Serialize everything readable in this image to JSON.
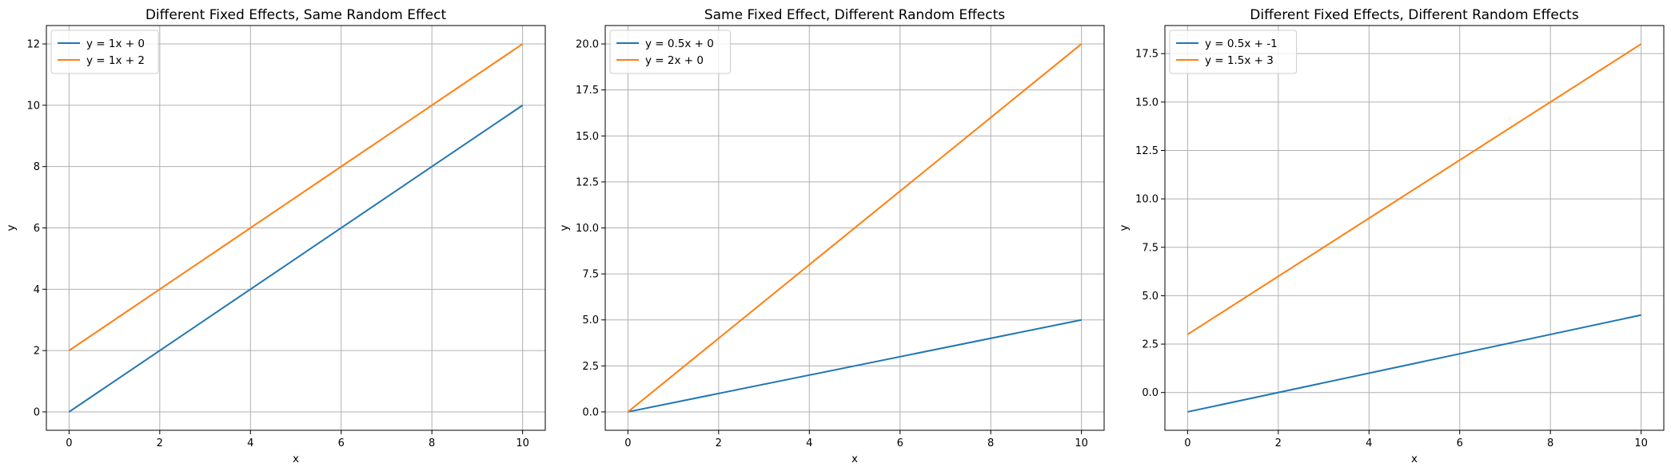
{
  "chart_data": [
    {
      "type": "line",
      "title": "Different Fixed Effects, Same Random Effect",
      "xlabel": "x",
      "ylabel": "y",
      "xlim": [
        -0.5,
        10.5
      ],
      "ylim": [
        -0.6,
        12.6
      ],
      "xticks": [
        0,
        2,
        4,
        6,
        8,
        10
      ],
      "yticks": [
        0,
        2,
        4,
        6,
        8,
        10,
        12
      ],
      "ytick_labels": [
        "0",
        "2",
        "4",
        "6",
        "8",
        "10",
        "12"
      ],
      "grid": true,
      "legend_position": "upper-left",
      "series": [
        {
          "name": "y = 1x + 0",
          "color": "#1f77b4",
          "x": [
            0,
            10
          ],
          "y": [
            0,
            10
          ]
        },
        {
          "name": "y = 1x + 2",
          "color": "#ff7f0e",
          "x": [
            0,
            10
          ],
          "y": [
            2,
            12
          ]
        }
      ]
    },
    {
      "type": "line",
      "title": "Same Fixed Effect, Different Random Effects",
      "xlabel": "x",
      "ylabel": "y",
      "xlim": [
        -0.5,
        10.5
      ],
      "ylim": [
        -1.0,
        21.0
      ],
      "xticks": [
        0,
        2,
        4,
        6,
        8,
        10
      ],
      "yticks": [
        0,
        2.5,
        5,
        7.5,
        10,
        12.5,
        15,
        17.5,
        20
      ],
      "ytick_labels": [
        "0.0",
        "2.5",
        "5.0",
        "7.5",
        "10.0",
        "12.5",
        "15.0",
        "17.5",
        "20.0"
      ],
      "grid": true,
      "legend_position": "upper-left",
      "series": [
        {
          "name": "y = 0.5x + 0",
          "color": "#1f77b4",
          "x": [
            0,
            10
          ],
          "y": [
            0,
            5
          ]
        },
        {
          "name": "y = 2x + 0",
          "color": "#ff7f0e",
          "x": [
            0,
            10
          ],
          "y": [
            0,
            20
          ]
        }
      ]
    },
    {
      "type": "line",
      "title": "Different Fixed Effects, Different Random Effects",
      "xlabel": "x",
      "ylabel": "y",
      "xlim": [
        -0.5,
        10.5
      ],
      "ylim": [
        -1.95,
        18.95
      ],
      "xticks": [
        0,
        2,
        4,
        6,
        8,
        10
      ],
      "yticks": [
        0,
        2.5,
        5,
        7.5,
        10,
        12.5,
        15,
        17.5
      ],
      "ytick_labels": [
        "0.0",
        "2.5",
        "5.0",
        "7.5",
        "10.0",
        "12.5",
        "15.0",
        "17.5"
      ],
      "grid": true,
      "legend_position": "upper-left",
      "series": [
        {
          "name": "y = 0.5x + -1",
          "color": "#1f77b4",
          "x": [
            0,
            10
          ],
          "y": [
            -1,
            4
          ]
        },
        {
          "name": "y = 1.5x + 3",
          "color": "#ff7f0e",
          "x": [
            0,
            10
          ],
          "y": [
            3,
            18
          ]
        }
      ]
    }
  ]
}
